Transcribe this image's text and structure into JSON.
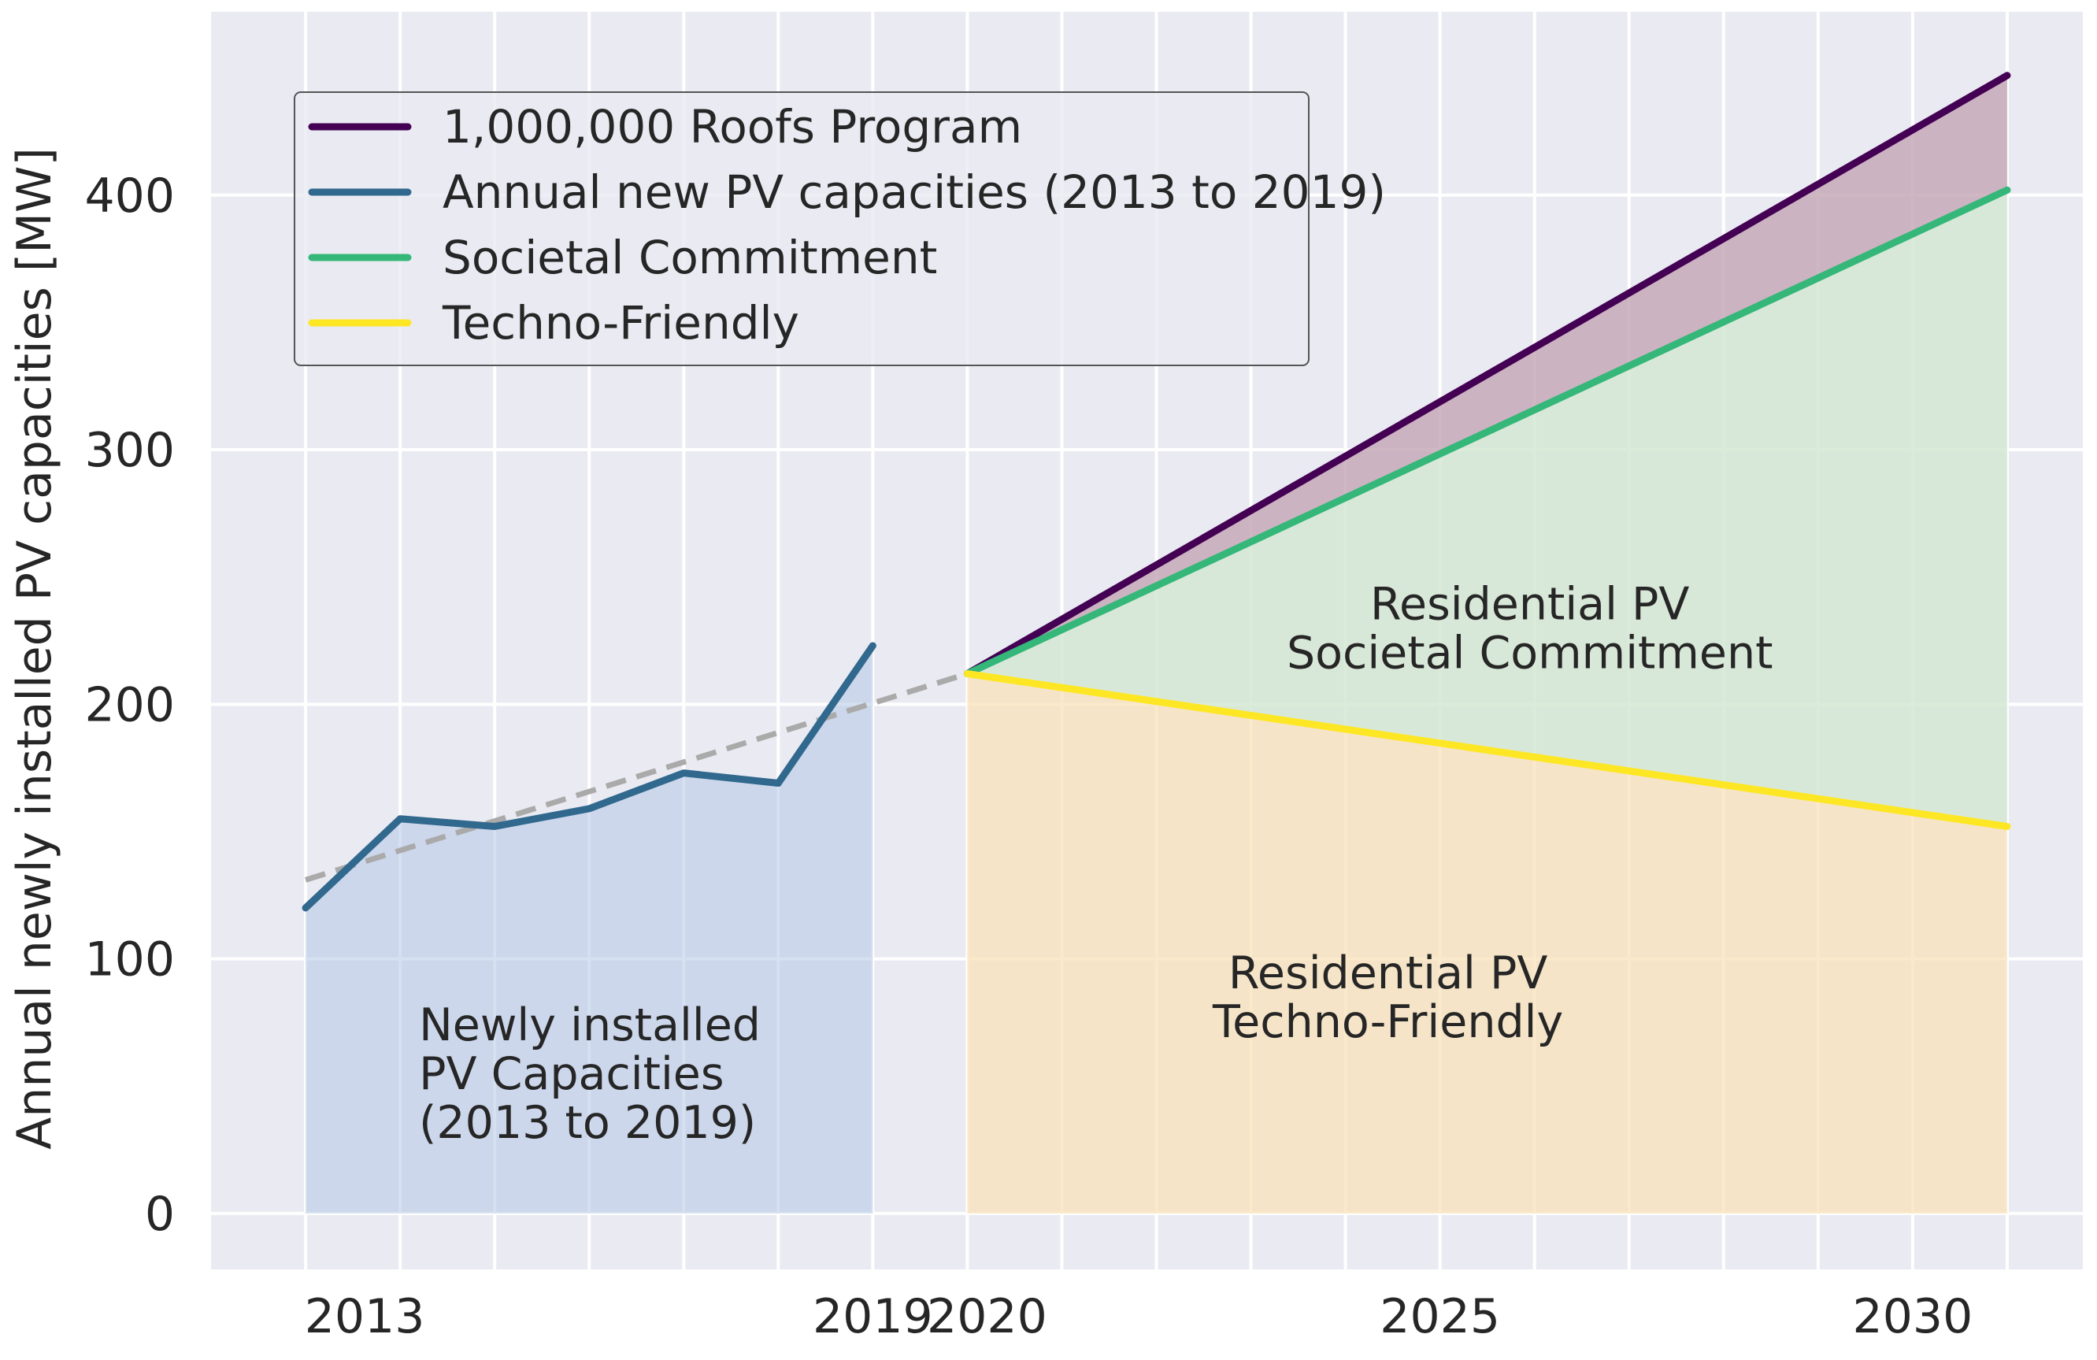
{
  "chart_data": {
    "type": "line",
    "title": "",
    "xlabel": "",
    "ylabel": "Annual newly installed PV capacities [MW]",
    "xlim": [
      2012,
      2031.8
    ],
    "ylim": [
      -22,
      472
    ],
    "grid": true,
    "x_ticks": [
      {
        "value": 2013,
        "label": "2013"
      },
      {
        "value": 2019,
        "label": "2019"
      },
      {
        "value": 2020,
        "label": "2020"
      },
      {
        "value": 2025,
        "label": "2025"
      },
      {
        "value": 2030,
        "label": "2030"
      }
    ],
    "y_ticks": [
      {
        "value": 0,
        "label": "0"
      },
      {
        "value": 100,
        "label": "100"
      },
      {
        "value": 200,
        "label": "200"
      },
      {
        "value": 300,
        "label": "300"
      },
      {
        "value": 400,
        "label": "400"
      }
    ],
    "legend_position": "top-left",
    "series": [
      {
        "name": "1,000,000 Roofs Program",
        "color": "#440154",
        "x": [
          2020,
          2031
        ],
        "y": [
          212,
          447
        ]
      },
      {
        "name": "Annual new PV capacities (2013 to 2019)",
        "color": "#31688e",
        "x": [
          2013,
          2014,
          2015,
          2016,
          2017,
          2018,
          2019
        ],
        "y": [
          120,
          155,
          152,
          159,
          173,
          169,
          223
        ]
      },
      {
        "name": "Societal Commitment",
        "color": "#35b779",
        "x": [
          2020,
          2031
        ],
        "y": [
          212,
          402
        ]
      },
      {
        "name": "Techno-Friendly",
        "color": "#fde725",
        "x": [
          2020,
          2031
        ],
        "y": [
          212,
          152
        ]
      }
    ],
    "trend_line": {
      "style": "dashed",
      "color": "#aaaaaa",
      "x": [
        2013,
        2020
      ],
      "y": [
        131,
        212
      ]
    },
    "shaded_regions": [
      {
        "name": "historical-fill",
        "color": "#b3c6e5",
        "opacity": 0.55,
        "x": [
          2013,
          2014,
          2015,
          2016,
          2017,
          2018,
          2019
        ],
        "lower": [
          0,
          0,
          0,
          0,
          0,
          0,
          0
        ],
        "upper": [
          120,
          155,
          152,
          159,
          173,
          169,
          223
        ]
      },
      {
        "name": "techno-friendly-fill",
        "color": "#f8e1b8",
        "opacity": 0.75,
        "x": [
          2020,
          2031
        ],
        "lower": [
          0,
          0
        ],
        "upper": [
          212,
          152
        ]
      },
      {
        "name": "societal-commitment-fill",
        "color": "#d5e8d4",
        "opacity": 0.85,
        "x": [
          2020,
          2031
        ],
        "lower": [
          212,
          152
        ],
        "upper": [
          212,
          402
        ]
      },
      {
        "name": "roofs-program-fill",
        "color": "#c7a9b9",
        "opacity": 0.85,
        "x": [
          2020,
          2031
        ],
        "lower": [
          212,
          402
        ],
        "upper": [
          212,
          447
        ]
      }
    ],
    "annotations": [
      {
        "name": "annotation-historical",
        "lines": [
          "Newly installed",
          "PV Capacities",
          "(2013 to 2019)"
        ],
        "x": 2014.2,
        "y": 55,
        "align": "start"
      },
      {
        "name": "annotation-techno-friendly",
        "lines": [
          "Residential PV",
          "Techno-Friendly"
        ],
        "x": 2024.45,
        "y": 85,
        "align": "middle"
      },
      {
        "name": "annotation-societal",
        "lines": [
          "Residential PV",
          "Societal Commitment"
        ],
        "x": 2025.95,
        "y": 230,
        "align": "middle"
      }
    ]
  }
}
